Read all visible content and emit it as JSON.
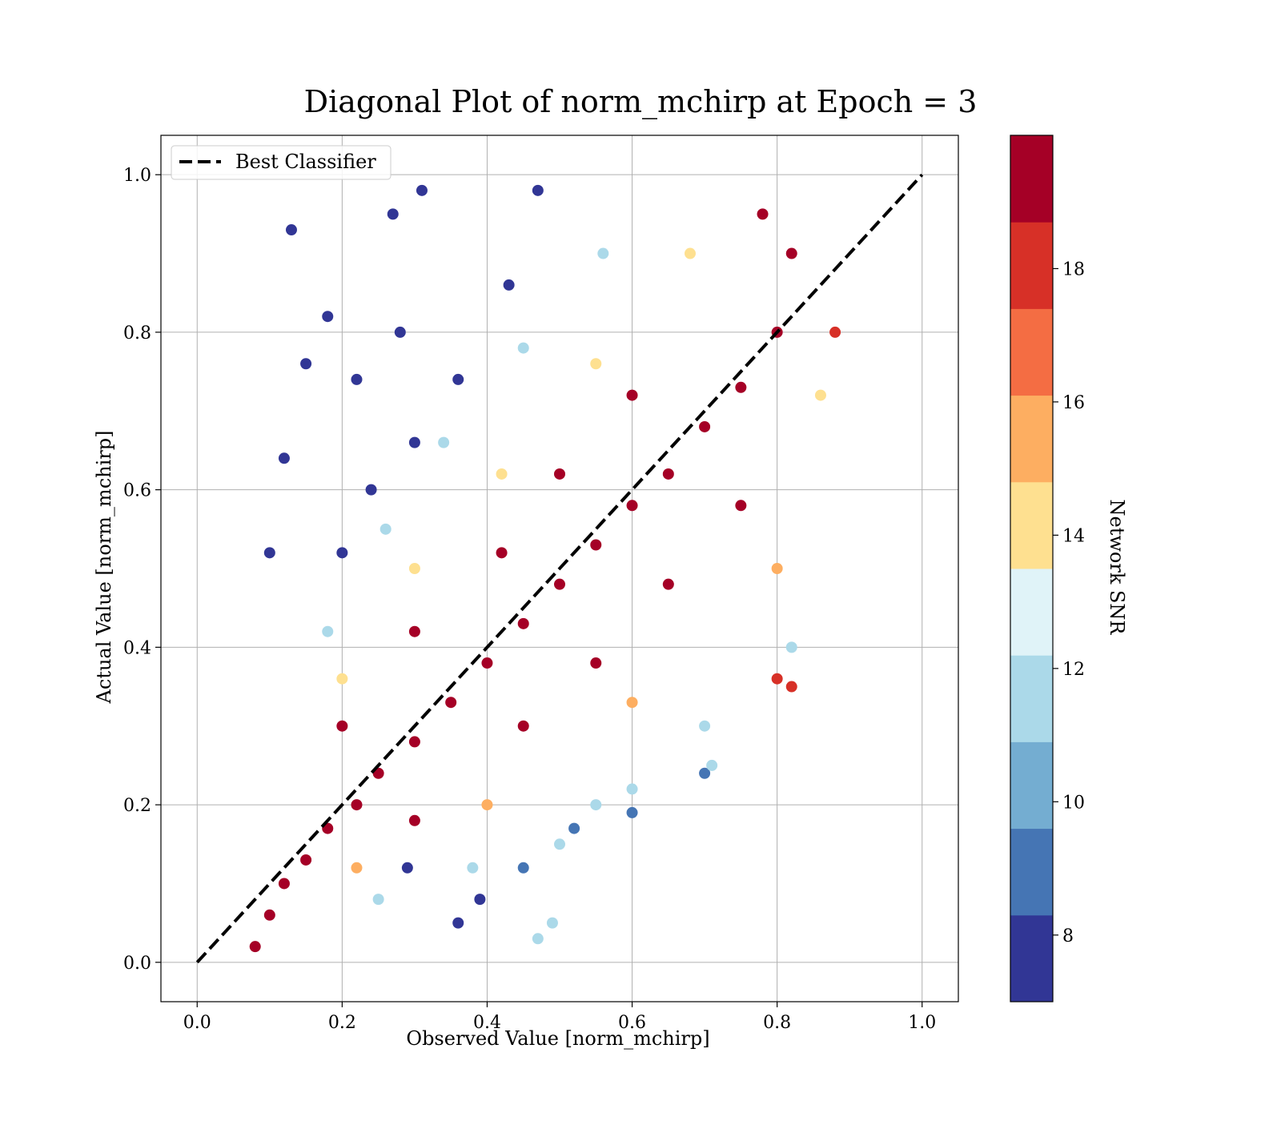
{
  "chart_data": {
    "type": "scatter",
    "title": "Diagonal Plot of norm_mchirp at Epoch = 3",
    "xlabel": "Observed Value [norm_mchirp]",
    "ylabel": "Actual Value [norm_mchirp]",
    "xlim": [
      -0.05,
      1.05
    ],
    "ylim": [
      -0.05,
      1.05
    ],
    "x_ticks": [
      "0.0",
      "0.2",
      "0.4",
      "0.6",
      "0.8",
      "1.0"
    ],
    "y_ticks": [
      "0.0",
      "0.2",
      "0.4",
      "0.6",
      "0.8",
      "1.0"
    ],
    "grid": true,
    "legend": {
      "placement": "upper-left",
      "entries": [
        "Best Classifier"
      ]
    },
    "reference_line": {
      "name": "Best Classifier",
      "style": "dashed",
      "color": "#000000",
      "x": [
        0.0,
        1.0
      ],
      "y": [
        0.0,
        1.0
      ]
    },
    "colorbar": {
      "label": "Network SNR",
      "range": [
        7,
        20
      ],
      "ticks": [
        "8",
        "10",
        "12",
        "14",
        "16",
        "18"
      ],
      "levels": [
        {
          "from": 7,
          "to": 8.3,
          "color": "#313695"
        },
        {
          "from": 8.3,
          "to": 9.6,
          "color": "#4575b4"
        },
        {
          "from": 9.6,
          "to": 10.9,
          "color": "#74add1"
        },
        {
          "from": 10.9,
          "to": 12.2,
          "color": "#abd9e9"
        },
        {
          "from": 12.2,
          "to": 13.5,
          "color": "#e0f3f8"
        },
        {
          "from": 13.5,
          "to": 14.8,
          "color": "#fee090"
        },
        {
          "from": 14.8,
          "to": 16.1,
          "color": "#fdae61"
        },
        {
          "from": 16.1,
          "to": 17.4,
          "color": "#f46d43"
        },
        {
          "from": 17.4,
          "to": 18.7,
          "color": "#d73027"
        },
        {
          "from": 18.7,
          "to": 20,
          "color": "#a50026"
        }
      ]
    },
    "points": [
      [
        0.08,
        0.02,
        20
      ],
      [
        0.1,
        0.06,
        20
      ],
      [
        0.12,
        0.1,
        20
      ],
      [
        0.15,
        0.13,
        20
      ],
      [
        0.18,
        0.17,
        20
      ],
      [
        0.22,
        0.2,
        20
      ],
      [
        0.25,
        0.24,
        20
      ],
      [
        0.3,
        0.28,
        20
      ],
      [
        0.35,
        0.33,
        20
      ],
      [
        0.4,
        0.38,
        20
      ],
      [
        0.45,
        0.43,
        20
      ],
      [
        0.5,
        0.48,
        20
      ],
      [
        0.55,
        0.53,
        20
      ],
      [
        0.6,
        0.58,
        20
      ],
      [
        0.65,
        0.62,
        20
      ],
      [
        0.7,
        0.68,
        20
      ],
      [
        0.75,
        0.73,
        20
      ],
      [
        0.8,
        0.8,
        20
      ],
      [
        0.82,
        0.9,
        20
      ],
      [
        0.78,
        0.95,
        20
      ],
      [
        0.2,
        0.3,
        19
      ],
      [
        0.3,
        0.42,
        19
      ],
      [
        0.42,
        0.52,
        19
      ],
      [
        0.5,
        0.62,
        19
      ],
      [
        0.6,
        0.72,
        19
      ],
      [
        0.3,
        0.18,
        19
      ],
      [
        0.45,
        0.3,
        19
      ],
      [
        0.55,
        0.38,
        19
      ],
      [
        0.65,
        0.48,
        19
      ],
      [
        0.75,
        0.58,
        19
      ],
      [
        0.2,
        0.36,
        14
      ],
      [
        0.3,
        0.5,
        14
      ],
      [
        0.42,
        0.62,
        14
      ],
      [
        0.55,
        0.76,
        14
      ],
      [
        0.68,
        0.9,
        14
      ],
      [
        0.22,
        0.12,
        15
      ],
      [
        0.4,
        0.2,
        15
      ],
      [
        0.6,
        0.33,
        15
      ],
      [
        0.8,
        0.5,
        15
      ],
      [
        0.86,
        0.72,
        14
      ],
      [
        0.18,
        0.42,
        11
      ],
      [
        0.26,
        0.55,
        11
      ],
      [
        0.34,
        0.66,
        11
      ],
      [
        0.45,
        0.78,
        11
      ],
      [
        0.56,
        0.9,
        11
      ],
      [
        0.25,
        0.08,
        11
      ],
      [
        0.38,
        0.12,
        11
      ],
      [
        0.55,
        0.2,
        11
      ],
      [
        0.7,
        0.3,
        11
      ],
      [
        0.82,
        0.4,
        11
      ],
      [
        0.13,
        0.93,
        7.5
      ],
      [
        0.18,
        0.82,
        7.5
      ],
      [
        0.22,
        0.74,
        7.5
      ],
      [
        0.27,
        0.95,
        7.5
      ],
      [
        0.31,
        0.98,
        7.5
      ],
      [
        0.24,
        0.6,
        8
      ],
      [
        0.3,
        0.66,
        8
      ],
      [
        0.36,
        0.74,
        8
      ],
      [
        0.43,
        0.86,
        8
      ],
      [
        0.47,
        0.98,
        8
      ],
      [
        0.2,
        0.52,
        8
      ],
      [
        0.15,
        0.76,
        8
      ],
      [
        0.12,
        0.64,
        8
      ],
      [
        0.1,
        0.52,
        8
      ],
      [
        0.28,
        0.8,
        8
      ],
      [
        0.29,
        0.12,
        8
      ],
      [
        0.36,
        0.05,
        8
      ],
      [
        0.39,
        0.08,
        8
      ],
      [
        0.45,
        0.12,
        9
      ],
      [
        0.52,
        0.17,
        9
      ],
      [
        0.6,
        0.19,
        9
      ],
      [
        0.7,
        0.24,
        9
      ],
      [
        0.8,
        0.36,
        18
      ],
      [
        0.82,
        0.35,
        18
      ],
      [
        0.88,
        0.8,
        18
      ],
      [
        0.49,
        0.05,
        12
      ],
      [
        0.47,
        0.03,
        12
      ],
      [
        0.71,
        0.25,
        12
      ],
      [
        0.6,
        0.22,
        12
      ],
      [
        0.5,
        0.15,
        12
      ]
    ]
  }
}
